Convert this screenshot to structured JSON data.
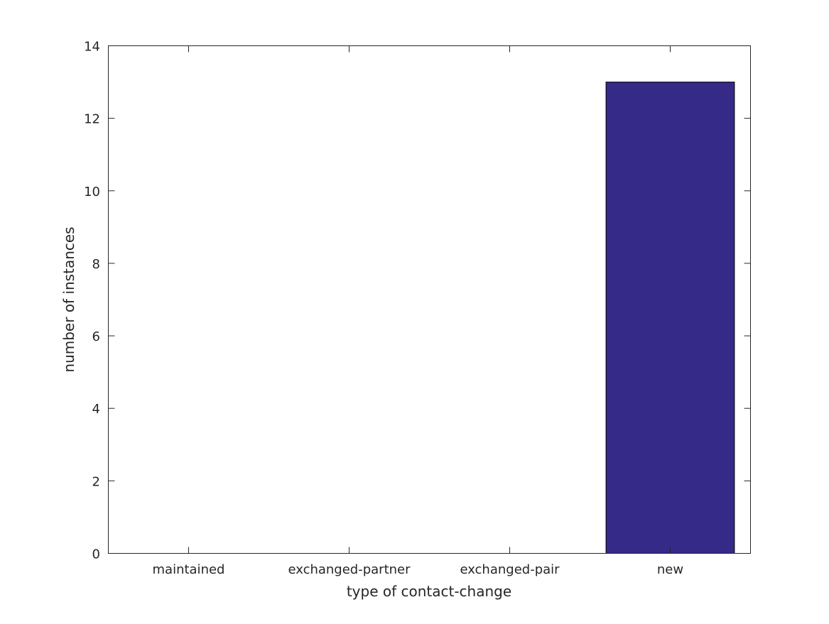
{
  "chart_data": {
    "type": "bar",
    "categories": [
      "maintained",
      "exchanged-partner",
      "exchanged-pair",
      "new"
    ],
    "values": [
      0,
      0,
      0,
      13
    ],
    "title": "",
    "xlabel": "type of contact-change",
    "ylabel": "number of instances",
    "ylim": [
      0,
      14
    ],
    "yticks": [
      0,
      2,
      4,
      6,
      8,
      10,
      12,
      14
    ],
    "grid": false,
    "bar_color": "#352a87"
  }
}
